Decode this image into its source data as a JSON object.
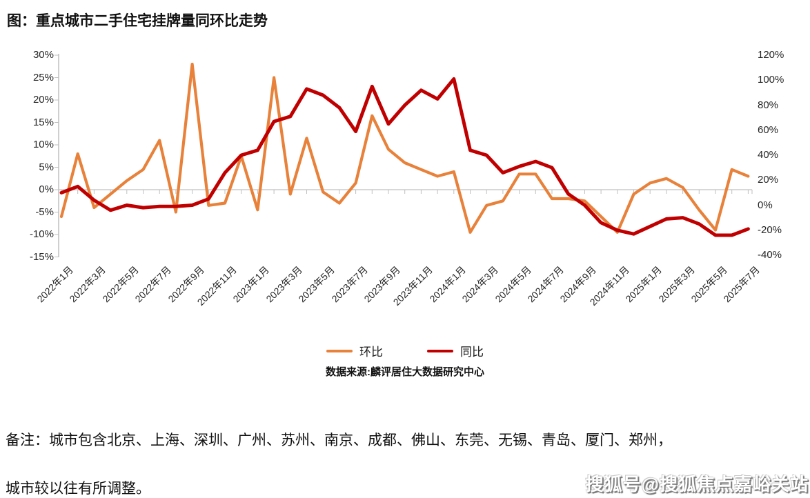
{
  "title": "图：重点城市二手住宅挂牌量同环比走势",
  "legend": [
    {
      "label": "环比",
      "color": "#E8813A"
    },
    {
      "label": "同比",
      "color": "#C00000"
    }
  ],
  "source": "数据来源:麟评居住大数据研究中心",
  "notes": [
    "备注：城市包含北京、上海、深圳、广州、苏州、南京、成都、佛山、东莞、无锡、青岛、厦门、郑州，",
    "城市较以往有所调整。"
  ],
  "watermark": "搜狐号@搜狐焦点嘉峪关站",
  "colors": {
    "mom_line": "#E8813A",
    "yoy_line": "#C00000",
    "axis_line": "#BFBFBF",
    "zero_line": "#CCCCCC",
    "text": "#262626"
  },
  "chart_data": {
    "type": "line",
    "title": "重点城市二手住宅挂牌量同环比走势",
    "categories": [
      "2022年1月",
      "2022年2月",
      "2022年3月",
      "2022年4月",
      "2022年5月",
      "2022年6月",
      "2022年7月",
      "2022年8月",
      "2022年9月",
      "2022年10月",
      "2022年11月",
      "2022年12月",
      "2023年1月",
      "2023年2月",
      "2023年3月",
      "2023年4月",
      "2023年5月",
      "2023年6月",
      "2023年7月",
      "2023年8月",
      "2023年9月",
      "2023年10月",
      "2023年11月",
      "2023年12月",
      "2024年1月",
      "2024年2月",
      "2024年3月",
      "2024年4月",
      "2024年5月",
      "2024年6月",
      "2024年7月",
      "2024年8月",
      "2024年9月",
      "2024年10月",
      "2024年11月",
      "2024年12月",
      "2025年1月",
      "2025年2月",
      "2025年3月",
      "2025年4月",
      "2025年5月",
      "2025年6月",
      "2025年7月"
    ],
    "x_label_every": 2,
    "series": [
      {
        "name": "环比",
        "axis": "left",
        "color": "#E8813A",
        "values": [
          -6,
          8,
          -4,
          -1,
          2,
          4.5,
          11,
          -5,
          28,
          -3.5,
          -3,
          7.5,
          -4.5,
          25,
          -1,
          11.5,
          -0.5,
          -3,
          1.5,
          16.5,
          9,
          6,
          4.5,
          3,
          4,
          -9.5,
          -3.5,
          -2.5,
          3.5,
          3.5,
          -2,
          -2,
          -2.5,
          -6,
          -9.5,
          -1,
          1.5,
          2.5,
          0.5,
          -4.5,
          -9,
          4.5,
          3
        ]
      },
      {
        "name": "同比",
        "axis": "right",
        "color": "#C00000",
        "values": [
          10,
          15,
          4,
          -4,
          0,
          -2,
          -1,
          -1,
          0,
          5,
          26,
          40,
          44,
          67,
          71,
          93,
          88,
          78,
          59,
          95,
          65,
          80,
          92,
          85,
          101,
          44,
          40,
          26,
          31,
          35,
          30,
          9,
          0,
          -14,
          -20,
          -23,
          -17,
          -11,
          -10,
          -15,
          -24,
          -24,
          -19
        ]
      }
    ],
    "left_axis": {
      "ticks": [
        "30%",
        "25%",
        "20%",
        "15%",
        "10%",
        "5%",
        "0%",
        "-5%",
        "-10%",
        "-15%"
      ],
      "min": -15,
      "max": 30
    },
    "right_axis": {
      "ticks": [
        "120%",
        "100%",
        "80%",
        "60%",
        "40%",
        "20%",
        "0%",
        "-20%",
        "-40%"
      ],
      "min": -40,
      "max": 120
    },
    "grid": "zero-line-only",
    "legend_position": "bottom"
  }
}
